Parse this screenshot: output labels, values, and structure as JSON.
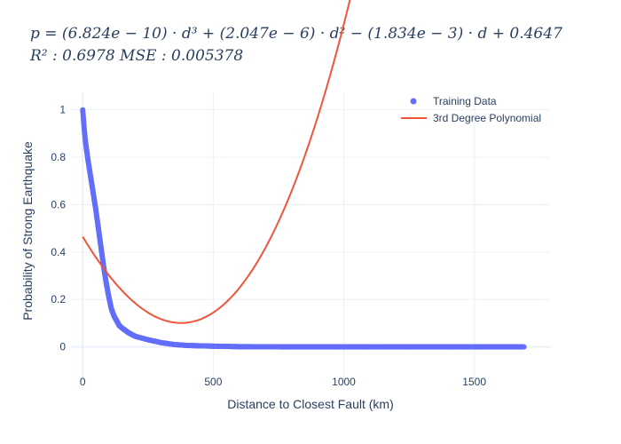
{
  "chart_data": {
    "type": "scatter",
    "title_line1": "p = (6.824e − 10) · d³ + (2.047e − 6) · d² − (1.834e − 3) · d + 0.4647",
    "title_line2": "R² : 0.6978  MSE : 0.005378",
    "xlabel": "Distance to Closest Fault (km)",
    "ylabel": "Probability of Strong Earthquake",
    "xlim": [
      -45,
      1790
    ],
    "ylim": [
      -0.14,
      1.07
    ],
    "xticks": [
      0,
      500,
      1000,
      1500
    ],
    "yticks": [
      0,
      0.2,
      0.4,
      0.6,
      0.8,
      1
    ],
    "xtick_labels": [
      "0",
      "500",
      "1000",
      "1500"
    ],
    "ytick_labels": [
      "0",
      "0.2",
      "0.4",
      "0.6",
      "0.8",
      "1"
    ],
    "grid": true,
    "legend_position": "top-right",
    "series": [
      {
        "name": "Training Data",
        "kind": "markers",
        "color": "#636efa",
        "x": [
          0,
          5,
          10,
          20,
          30,
          40,
          50,
          60,
          70,
          80,
          90,
          100,
          110,
          120,
          130,
          140,
          150,
          175,
          200,
          250,
          300,
          350,
          400,
          500,
          600,
          800,
          1000,
          1200,
          1400,
          1600,
          1690
        ],
        "y": [
          1.0,
          0.93,
          0.87,
          0.79,
          0.72,
          0.65,
          0.58,
          0.5,
          0.42,
          0.34,
          0.27,
          0.21,
          0.16,
          0.13,
          0.11,
          0.09,
          0.08,
          0.06,
          0.045,
          0.03,
          0.018,
          0.01,
          0.006,
          0.003,
          0.001,
          0.0,
          0.0,
          0.0,
          0.0,
          0.0,
          0.0
        ]
      },
      {
        "name": "3rd Degree Polynomial",
        "kind": "line",
        "color": "#ef553b",
        "coefficients": [
          6.824e-10,
          2.047e-06,
          -0.001834,
          0.4647
        ],
        "x_range": [
          0,
          1690
        ]
      }
    ]
  }
}
